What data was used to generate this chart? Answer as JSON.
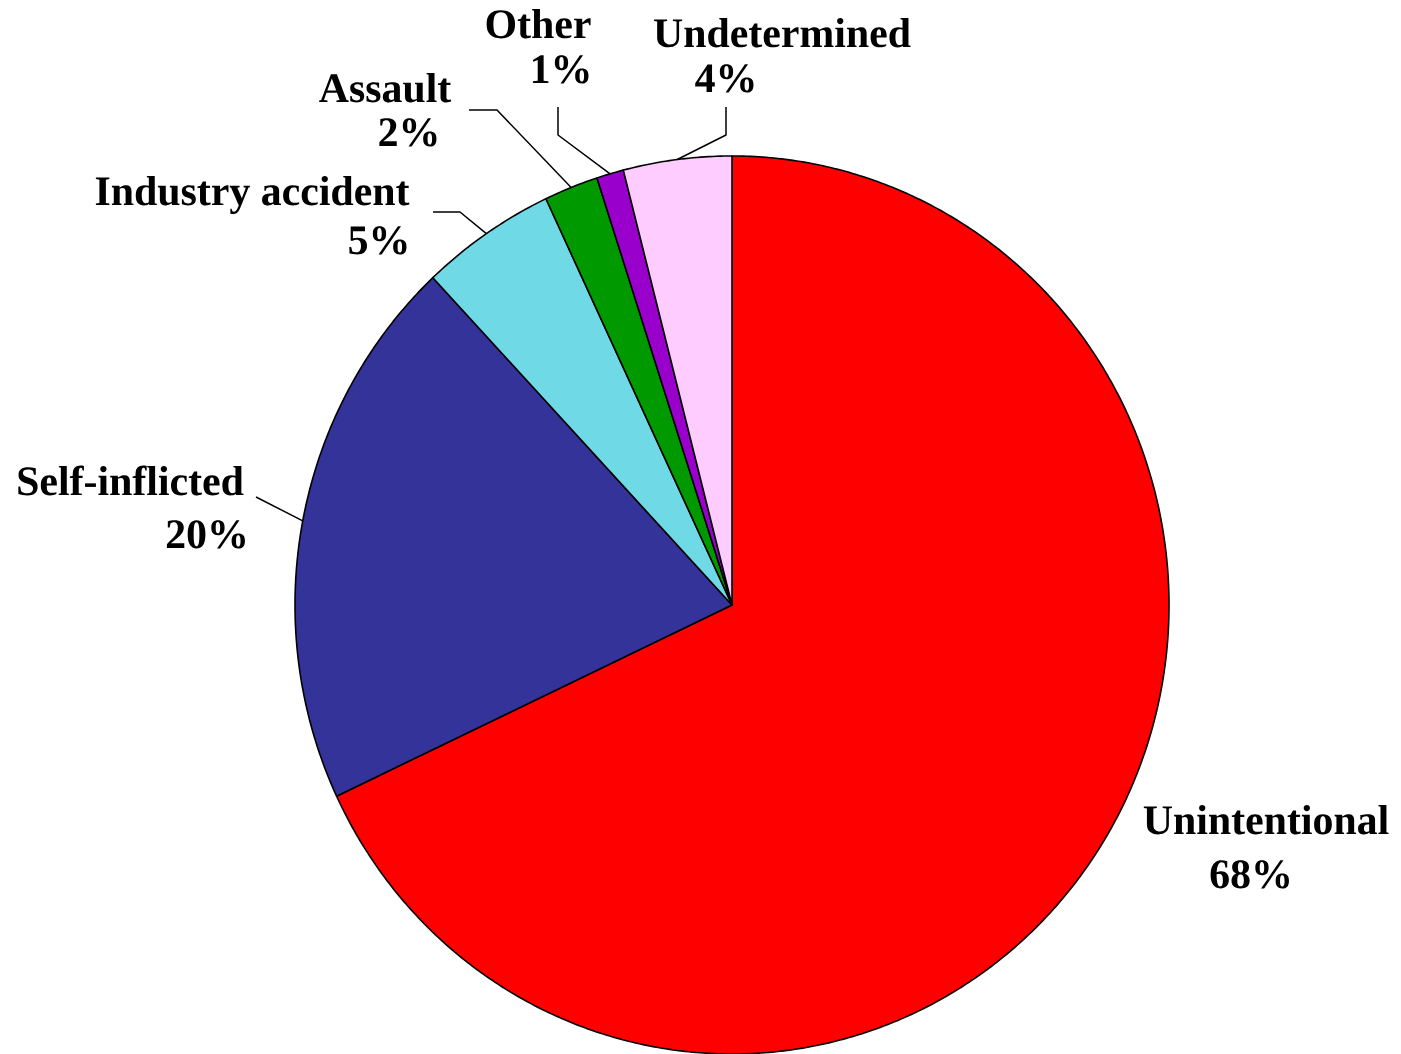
{
  "chart_data": {
    "type": "pie",
    "categories": [
      "Unintentional",
      "Self-inflicted",
      "Industry accident",
      "Assault",
      "Other",
      "Undetermined"
    ],
    "values": [
      68,
      20,
      5,
      2,
      1,
      4
    ],
    "colors": [
      "#ff0000",
      "#333399",
      "#6fdae5",
      "#009900",
      "#9900cc",
      "#ffccff"
    ],
    "value_labels": [
      "68%",
      "20%",
      "5%",
      "2%",
      "1%",
      "4%"
    ]
  }
}
